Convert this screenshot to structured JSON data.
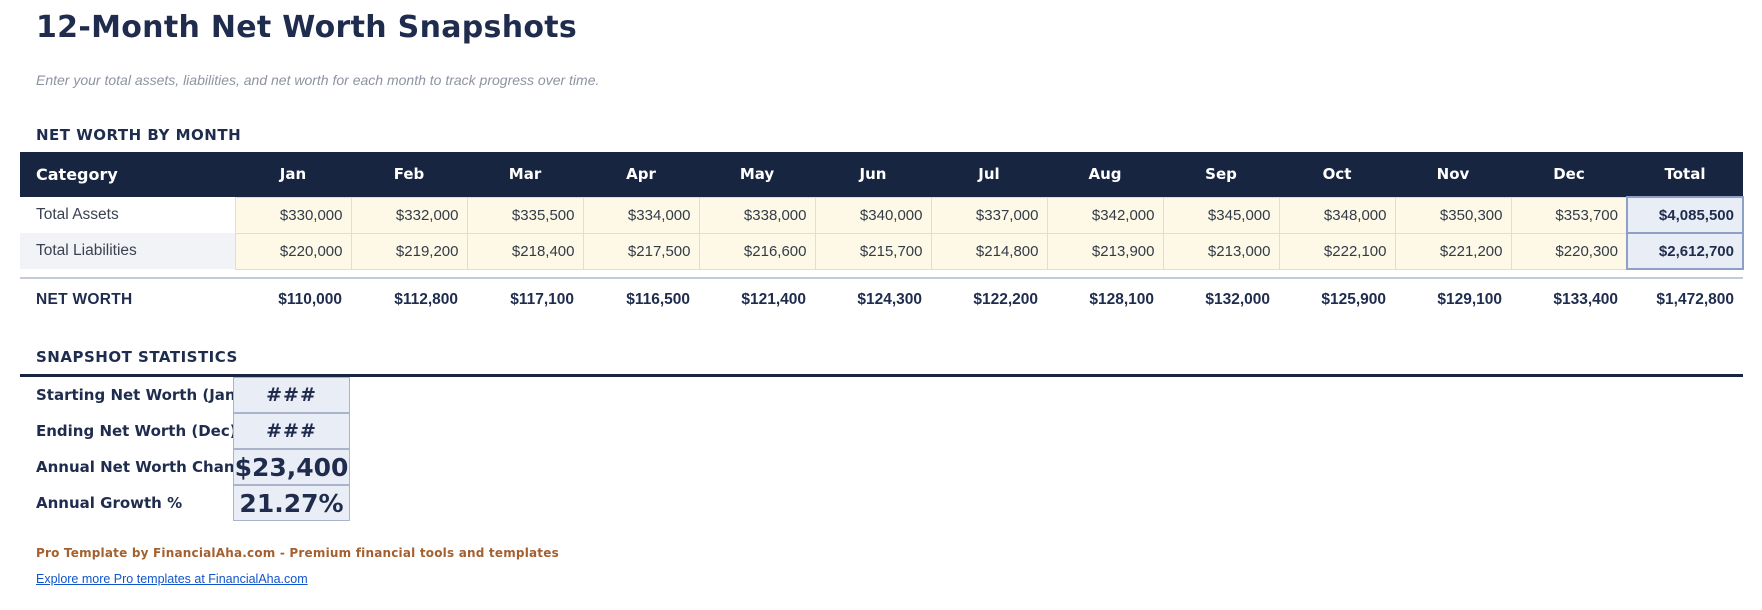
{
  "page": {
    "title": "12-Month Net Worth Snapshots",
    "subtitle": "Enter your total assets, liabilities, and net worth for each month to track progress over time."
  },
  "net_worth": {
    "heading": "NET WORTH BY MONTH",
    "table": {
      "category_header": "Category",
      "columns": [
        "Jan",
        "Feb",
        "Mar",
        "Apr",
        "May",
        "Jun",
        "Jul",
        "Aug",
        "Sep",
        "Oct",
        "Nov",
        "Dec",
        "Total"
      ],
      "rows": [
        {
          "category": "Total Assets",
          "values": [
            "$330,000",
            "$332,000",
            "$335,500",
            "$334,000",
            "$338,000",
            "$340,000",
            "$337,000",
            "$342,000",
            "$345,000",
            "$348,000",
            "$350,300",
            "$353,700"
          ],
          "total": "$4,085,500"
        },
        {
          "category": "Total Liabilities",
          "values": [
            "$220,000",
            "$219,200",
            "$218,400",
            "$217,500",
            "$216,600",
            "$215,700",
            "$214,800",
            "$213,900",
            "$213,000",
            "$222,100",
            "$221,200",
            "$220,300"
          ],
          "total": "$2,612,700"
        }
      ],
      "summary_row": {
        "category": "NET WORTH",
        "values": [
          "$110,000",
          "$112,800",
          "$117,100",
          "$116,500",
          "$121,400",
          "$124,300",
          "$122,200",
          "$128,100",
          "$132,000",
          "$125,900",
          "$129,100",
          "$133,400"
        ],
        "total": "$1,472,800"
      }
    }
  },
  "stats": {
    "heading": "SNAPSHOT STATISTICS",
    "rows": [
      {
        "label": "Starting Net Worth (Jan)",
        "value": "###"
      },
      {
        "label": "Ending Net Worth (Dec)",
        "value": "###"
      },
      {
        "label": "Annual Net Worth Change",
        "value": "$23,400"
      },
      {
        "label": "Annual Growth %",
        "value": "21.27%"
      }
    ]
  },
  "footer": {
    "branding": "Pro Template by FinancialAha.com - Premium financial tools and templates",
    "link": "Explore more Pro templates at FinancialAha.com"
  },
  "colors": {
    "header_bg": "#172540",
    "accent_text": "#1f2c4e",
    "input_cell_bg": "#fdf9e6",
    "input_cell_border": "#e7debe",
    "total_cell_bg": "#e9edf5",
    "total_cell_border": "#8da0c6",
    "stat_box_bg": "#e9edf5",
    "stat_box_border": "#a9b4cc",
    "divider_gray": "#c5cbd6",
    "brand_text": "#a4602f",
    "link_text": "#1155cc"
  }
}
